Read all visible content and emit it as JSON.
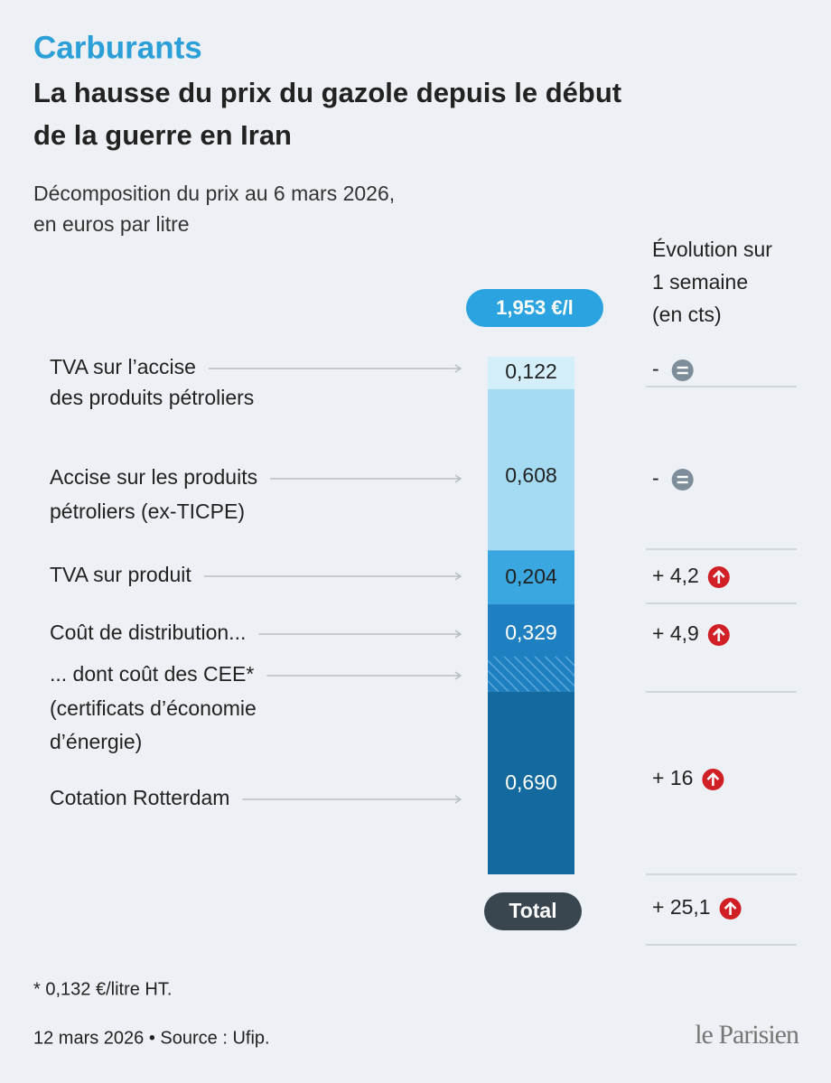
{
  "chart_data": {
    "type": "stacked_bar",
    "kicker": "Carburants",
    "title": [
      "La hausse du prix du gazole depuis le début",
      "de la guerre en Iran"
    ],
    "subtitle": [
      "Décomposition du prix au 6 mars 2026,",
      "en euros par litre"
    ],
    "total_label": "1,953 €/l",
    "total_text": "Total",
    "change_header": [
      "Évolution sur",
      "1 semaine",
      "(en cts)"
    ],
    "categories": [
      [
        "TVA sur l’accise",
        "des produits pétroliers"
      ],
      [
        "Accise sur les produits",
        "pétroliers (ex-TICPE)"
      ],
      [
        "TVA sur produit"
      ],
      [
        "Coût de distribution..."
      ],
      [
        "Cotation Rotterdam"
      ]
    ],
    "values": [
      0.122,
      0.608,
      0.204,
      0.329,
      0.69
    ],
    "value_labels": [
      "0,122",
      "0,608",
      "0,204",
      "0,329",
      "0,690"
    ],
    "colors": [
      "#d4eefa",
      "#a5daf3",
      "#3ba7e0",
      "#1f80c1",
      "#146a9f"
    ],
    "ylim": [
      0,
      1.953
    ],
    "cee_label": [
      "... dont coût des CEE*",
      "(certificats d’économie",
      "d’énergie)"
    ],
    "cee_value": 0.132,
    "changes": [
      "-",
      "-",
      "+ 4,2",
      "+ 4,9",
      "+ 16"
    ],
    "total_change": "+ 25,1",
    "footnote": "* 0,132 €/litre HT.",
    "source": "12 mars 2026 • Source : Ufip.",
    "logo": "le Parisien"
  }
}
